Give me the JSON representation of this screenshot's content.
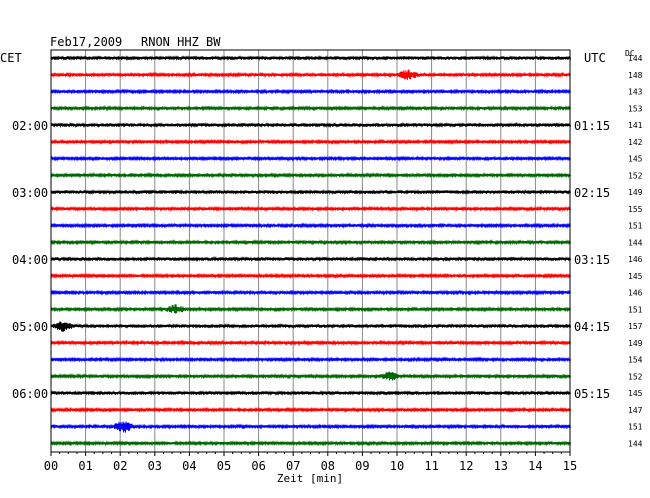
{
  "header": {
    "date": "Feb17,2009",
    "station": "RNON HHZ BW",
    "left_timezone": "CET",
    "right_timezone": "UTC",
    "dc_label": "DC"
  },
  "chart_data": {
    "type": "line",
    "title": "Feb17,2009 RNON HHZ BW",
    "xlabel": "Zeit [min]",
    "ylabel": "",
    "xlim": [
      0,
      15
    ],
    "x_ticks": [
      "00",
      "01",
      "02",
      "03",
      "04",
      "05",
      "06",
      "07",
      "08",
      "09",
      "10",
      "11",
      "12",
      "13",
      "14",
      "15"
    ],
    "grid": true,
    "trace_count": 24,
    "trace_colors": [
      "#000000",
      "#ff0000",
      "#0000ff",
      "#006600"
    ],
    "left_hour_labels": [
      {
        "trace": 4,
        "label": "02:00"
      },
      {
        "trace": 8,
        "label": "03:00"
      },
      {
        "trace": 12,
        "label": "04:00"
      },
      {
        "trace": 16,
        "label": "05:00"
      },
      {
        "trace": 20,
        "label": "06:00"
      }
    ],
    "right_hour_labels": [
      {
        "trace": 4,
        "label": "01:15"
      },
      {
        "trace": 8,
        "label": "02:15"
      },
      {
        "trace": 12,
        "label": "03:15"
      },
      {
        "trace": 16,
        "label": "04:15"
      },
      {
        "trace": 20,
        "label": "05:15"
      }
    ],
    "dc_values": [
      "144",
      "148",
      "143",
      "153",
      "141",
      "142",
      "145",
      "152",
      "149",
      "155",
      "151",
      "144",
      "146",
      "145",
      "146",
      "151",
      "157",
      "149",
      "154",
      "152",
      "145",
      "147",
      "151",
      "144"
    ],
    "events": [
      {
        "trace": 1,
        "minute": 10.3,
        "amplitude": 1.6
      },
      {
        "trace": 15,
        "minute": 3.6,
        "amplitude": 1.3
      },
      {
        "trace": 16,
        "minute": 0.35,
        "amplitude": 1.5
      },
      {
        "trace": 19,
        "minute": 9.8,
        "amplitude": 1.3
      },
      {
        "trace": 22,
        "minute": 2.1,
        "amplitude": 1.9
      }
    ]
  }
}
